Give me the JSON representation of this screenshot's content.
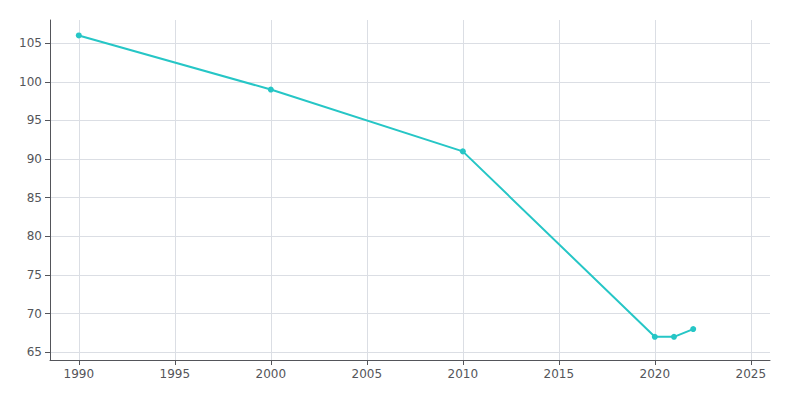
{
  "chart_data": {
    "type": "line",
    "x": [
      1990,
      2000,
      2010,
      2020,
      2021,
      2022
    ],
    "values": [
      106,
      99,
      91,
      67,
      67,
      68
    ],
    "color": "#26C6C6",
    "marker": "circle",
    "xlim": [
      1988.5,
      2026
    ],
    "ylim": [
      64,
      108
    ],
    "xticks": [
      1990,
      1995,
      2000,
      2005,
      2010,
      2015,
      2020,
      2025
    ],
    "yticks": [
      65,
      70,
      75,
      80,
      85,
      90,
      95,
      100,
      105
    ],
    "grid": true
  }
}
